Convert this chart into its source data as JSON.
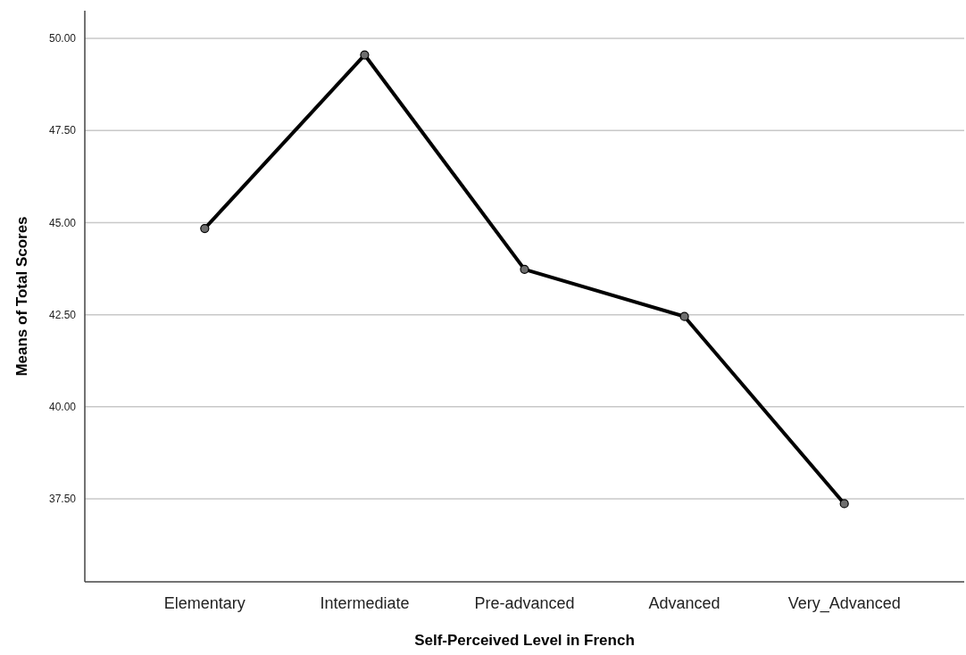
{
  "chart_data": {
    "type": "line",
    "xlabel": "Self-Perceived Level in French",
    "ylabel": "Means of Total Scores",
    "categories": [
      "Elementary",
      "Intermediate",
      "Pre-advanced",
      "Advanced",
      "Very_Advanced"
    ],
    "series": [
      {
        "color": "#000000",
        "values": [
          44.84,
          49.55,
          43.73,
          42.45,
          37.37
        ]
      }
    ],
    "ylim": [
      35.25,
      50.75
    ],
    "yticks": [
      {
        "value": 37.5,
        "label": "37.50"
      },
      {
        "value": 40,
        "label": "40.00"
      },
      {
        "value": 42.5,
        "label": "42.50"
      },
      {
        "value": 45,
        "label": "45.00"
      },
      {
        "value": 47.5,
        "label": "47.50"
      },
      {
        "value": 50,
        "label": "50.00"
      }
    ],
    "grid": "y",
    "marker": "circle"
  }
}
